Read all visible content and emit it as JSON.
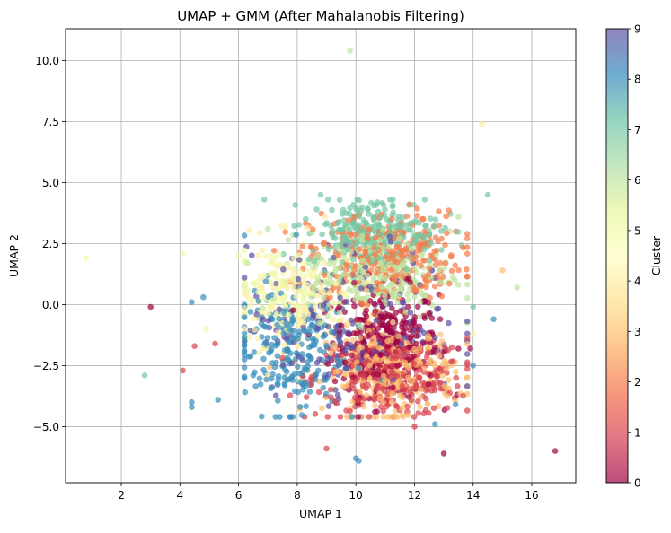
{
  "chart_data": {
    "type": "scatter",
    "title": "UMAP + GMM (After Mahalanobis Filtering)",
    "xlabel": "UMAP 1",
    "ylabel": "UMAP 2",
    "xlim": [
      0.1,
      17.5
    ],
    "ylim": [
      -7.3,
      11.3
    ],
    "x_ticks": [
      2,
      4,
      6,
      8,
      10,
      12,
      14,
      16
    ],
    "y_ticks": [
      -5.0,
      -2.5,
      0.0,
      2.5,
      5.0,
      7.5,
      10.0
    ],
    "x_tick_labels": [
      "2",
      "4",
      "6",
      "8",
      "10",
      "12",
      "14",
      "16"
    ],
    "y_tick_labels": [
      "−5.0",
      "−2.5",
      "0.0",
      "2.5",
      "5.0",
      "7.5",
      "10.0"
    ],
    "grid": true,
    "colorbar": {
      "label": "Cluster",
      "min": 0,
      "max": 9,
      "ticks": [
        0,
        1,
        2,
        3,
        4,
        5,
        6,
        7,
        8,
        9
      ],
      "tick_labels": [
        "0",
        "1",
        "2",
        "3",
        "4",
        "5",
        "6",
        "7",
        "8",
        "9"
      ],
      "colormap": "Spectral",
      "colors": [
        "#9e0142",
        "#d53e4f",
        "#f46d43",
        "#fdae61",
        "#fee08b",
        "#ffffbf",
        "#e6f598",
        "#abdda4",
        "#66c2a5",
        "#3288bd",
        "#5e4fa2"
      ],
      "alpha": 0.7
    },
    "clusters": [
      {
        "cluster": 0,
        "center": [
          11.0,
          -1.5
        ],
        "spread": [
          0.9,
          1.1
        ],
        "count": 320
      },
      {
        "cluster": 1,
        "center": [
          11.2,
          -3.0
        ],
        "spread": [
          1.3,
          0.8
        ],
        "count": 320
      },
      {
        "cluster": 2,
        "center": [
          11.0,
          2.0
        ],
        "spread": [
          1.3,
          0.9
        ],
        "count": 320
      },
      {
        "cluster": 3,
        "center": [
          11.2,
          -2.7
        ],
        "spread": [
          1.1,
          0.9
        ],
        "count": 300
      },
      {
        "cluster": 4,
        "center": [
          8.0,
          -0.2
        ],
        "spread": [
          1.1,
          1.3
        ],
        "count": 140
      },
      {
        "cluster": 5,
        "center": [
          7.5,
          0.8
        ],
        "spread": [
          1.0,
          0.8
        ],
        "count": 120
      },
      {
        "cluster": 6,
        "center": [
          10.8,
          1.2
        ],
        "spread": [
          1.2,
          0.9
        ],
        "count": 280
      },
      {
        "cluster": 7,
        "center": [
          10.6,
          3.0
        ],
        "spread": [
          1.1,
          0.7
        ],
        "count": 260
      },
      {
        "cluster": 8,
        "center": [
          7.6,
          -1.8
        ],
        "spread": [
          1.0,
          1.3
        ],
        "count": 240
      },
      {
        "cluster": 9,
        "center": [
          10.0,
          -0.8
        ],
        "spread": [
          1.8,
          1.5
        ],
        "count": 200
      }
    ],
    "outliers": [
      {
        "x": 9.8,
        "y": 10.4,
        "cluster": 6
      },
      {
        "x": 14.3,
        "y": 7.4,
        "cluster": 4
      },
      {
        "x": 14.5,
        "y": 4.5,
        "cluster": 7
      },
      {
        "x": 8.8,
        "y": 4.5,
        "cluster": 7
      },
      {
        "x": 0.8,
        "y": 1.9,
        "cluster": 5
      },
      {
        "x": 4.1,
        "y": 2.1,
        "cluster": 5
      },
      {
        "x": 3.0,
        "y": -0.1,
        "cluster": 0
      },
      {
        "x": 2.8,
        "y": -2.9,
        "cluster": 7
      },
      {
        "x": 4.1,
        "y": -2.7,
        "cluster": 1
      },
      {
        "x": 4.4,
        "y": -4.0,
        "cluster": 8
      },
      {
        "x": 4.4,
        "y": -4.2,
        "cluster": 8
      },
      {
        "x": 5.3,
        "y": -3.9,
        "cluster": 8
      },
      {
        "x": 4.4,
        "y": 0.1,
        "cluster": 8
      },
      {
        "x": 4.8,
        "y": 0.3,
        "cluster": 8
      },
      {
        "x": 4.5,
        "y": -1.7,
        "cluster": 1
      },
      {
        "x": 5.2,
        "y": -1.6,
        "cluster": 1
      },
      {
        "x": 4.9,
        "y": -1.0,
        "cluster": 5
      },
      {
        "x": 7.0,
        "y": 3.1,
        "cluster": 6
      },
      {
        "x": 7.6,
        "y": 3.2,
        "cluster": 5
      },
      {
        "x": 9.0,
        "y": -5.9,
        "cluster": 1
      },
      {
        "x": 10.0,
        "y": -6.3,
        "cluster": 8
      },
      {
        "x": 10.1,
        "y": -6.4,
        "cluster": 8
      },
      {
        "x": 13.0,
        "y": -6.1,
        "cluster": 0
      },
      {
        "x": 16.8,
        "y": -6.0,
        "cluster": 0
      },
      {
        "x": 12.0,
        "y": -5.0,
        "cluster": 1
      },
      {
        "x": 12.7,
        "y": -4.9,
        "cluster": 8
      },
      {
        "x": 13.4,
        "y": -4.1,
        "cluster": 8
      },
      {
        "x": 14.0,
        "y": -2.5,
        "cluster": 8
      },
      {
        "x": 14.0,
        "y": -1.2,
        "cluster": 4
      },
      {
        "x": 13.9,
        "y": -1.8,
        "cluster": 0
      },
      {
        "x": 14.7,
        "y": -0.6,
        "cluster": 8
      },
      {
        "x": 15.0,
        "y": 1.4,
        "cluster": 3
      },
      {
        "x": 15.5,
        "y": 0.7,
        "cluster": 6
      },
      {
        "x": 14.0,
        "y": -0.1,
        "cluster": 7
      },
      {
        "x": 13.5,
        "y": 3.6,
        "cluster": 6
      },
      {
        "x": 6.0,
        "y": 2.0,
        "cluster": 5
      },
      {
        "x": 6.3,
        "y": 1.7,
        "cluster": 6
      },
      {
        "x": 6.2,
        "y": 1.1,
        "cluster": 9
      }
    ]
  }
}
